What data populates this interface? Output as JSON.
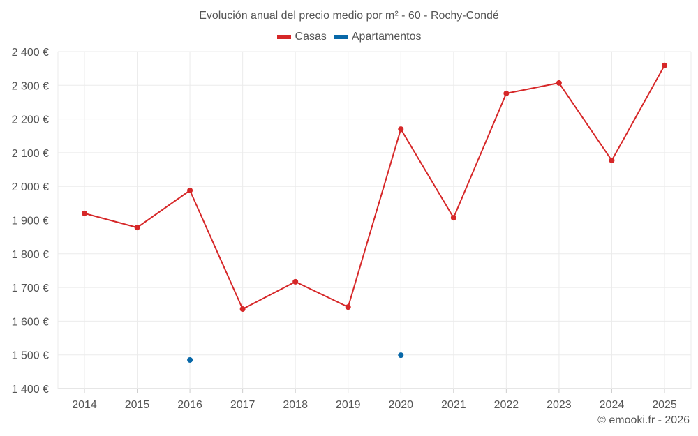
{
  "chart_data": {
    "type": "line",
    "title": "Evolución anual del precio medio por m² - 60 - Rochy-Condé",
    "categories": [
      "2014",
      "2015",
      "2016",
      "2017",
      "2018",
      "2019",
      "2020",
      "2021",
      "2022",
      "2023",
      "2024",
      "2025"
    ],
    "series": [
      {
        "name": "Casas",
        "color": "#d62728",
        "values": [
          1920,
          1878,
          1988,
          1636,
          1717,
          1642,
          2170,
          1907,
          2276,
          2307,
          2077,
          2359
        ]
      },
      {
        "name": "Apartamentos",
        "color": "#0868a8",
        "values": [
          null,
          null,
          1485,
          null,
          null,
          null,
          1499,
          null,
          null,
          null,
          null,
          null
        ]
      }
    ],
    "ylim": [
      1400,
      2400
    ],
    "yticks": [
      1400,
      1500,
      1600,
      1700,
      1800,
      1900,
      2000,
      2100,
      2200,
      2300,
      2400
    ],
    "ytick_labels": [
      "1 400 €",
      "1 500 €",
      "1 600 €",
      "1 700 €",
      "1 800 €",
      "1 900 €",
      "2 000 €",
      "2 100 €",
      "2 200 €",
      "2 300 €",
      "2 400 €"
    ],
    "grid": true,
    "legend_position": "top-center"
  },
  "credit": "© emooki.fr - 2026"
}
